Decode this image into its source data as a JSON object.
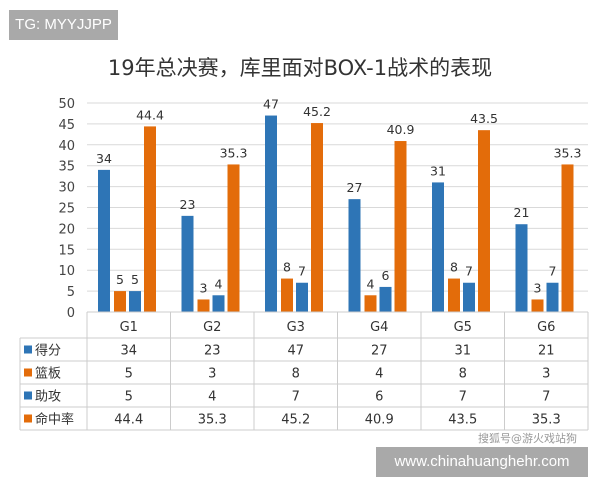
{
  "watermarks": {
    "top_left": "TG: MYYJJPP",
    "bottom_right": "www.chinahuanghehr.com",
    "sohu": "搜狐号@游火戏站狗"
  },
  "chart_data": {
    "type": "bar",
    "title": "19年总决赛，库里面对BOX-1战术的表现",
    "categories": [
      "G1",
      "G2",
      "G3",
      "G4",
      "G5",
      "G6"
    ],
    "series": [
      {
        "name": "得分",
        "color": "#2e75b6",
        "values": [
          34,
          23,
          47,
          27,
          31,
          21
        ]
      },
      {
        "name": "篮板",
        "color": "#e36c0a",
        "values": [
          5,
          3,
          8,
          4,
          8,
          3
        ]
      },
      {
        "name": "助攻",
        "color": "#2e75b6",
        "values": [
          5,
          4,
          7,
          6,
          7,
          7
        ]
      },
      {
        "name": "命中率",
        "color": "#e36c0a",
        "values": [
          44.4,
          35.3,
          45.2,
          40.9,
          43.5,
          35.3
        ]
      }
    ],
    "ylim": [
      0,
      50
    ],
    "yticks": [
      0,
      5,
      10,
      15,
      20,
      25,
      30,
      35,
      40,
      45,
      50
    ],
    "grid": true,
    "data_table": true,
    "legend": "data-table"
  }
}
